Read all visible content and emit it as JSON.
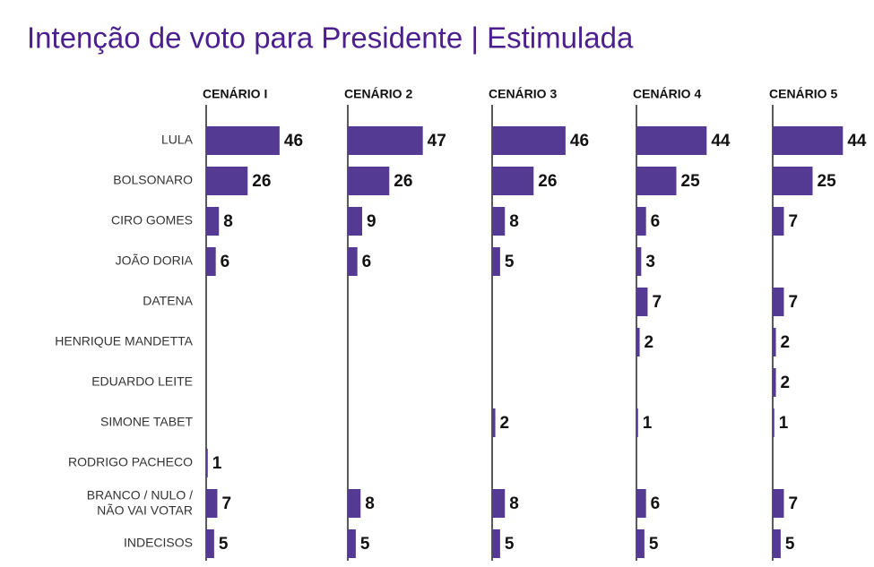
{
  "chart_data": {
    "type": "bar",
    "orientation": "horizontal",
    "title": "Intenção de voto para Presidente | Estimulada",
    "categories": [
      "LULA",
      "BOLSONARO",
      "CIRO GOMES",
      "JOÃO DORIA",
      "DATENA",
      "HENRIQUE MANDETTA",
      "EDUARDO LEITE",
      "SIMONE TABET",
      "RODRIGO PACHECO",
      "BRANCO / NULO /\nNÃO VAI VOTAR",
      "INDECISOS"
    ],
    "series": [
      {
        "name": "CENÁRIO I",
        "color": "#553a94",
        "values": [
          46,
          26,
          8,
          6,
          null,
          null,
          null,
          null,
          1,
          7,
          5
        ]
      },
      {
        "name": "CENÁRIO 2",
        "color": "#553a94",
        "values": [
          47,
          26,
          9,
          6,
          null,
          null,
          null,
          null,
          null,
          8,
          5
        ]
      },
      {
        "name": "CENÁRIO 3",
        "color": "#553a94",
        "values": [
          46,
          26,
          8,
          5,
          null,
          null,
          null,
          2,
          null,
          8,
          5
        ]
      },
      {
        "name": "CENÁRIO 4",
        "color": "#553a94",
        "values": [
          44,
          25,
          6,
          3,
          7,
          2,
          null,
          1,
          null,
          6,
          5
        ]
      },
      {
        "name": "CENÁRIO 5",
        "color": "#553a94",
        "values": [
          44,
          25,
          7,
          null,
          7,
          2,
          2,
          1,
          null,
          7,
          5
        ]
      }
    ]
  }
}
